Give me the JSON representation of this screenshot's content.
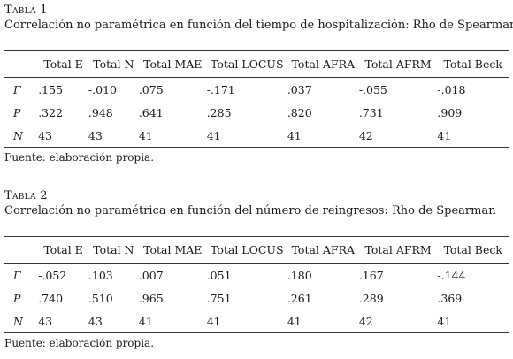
{
  "tables": [
    {
      "label": "Tabla 1",
      "caption": "Correlación no paramétrica en función del tiempo de hospitalización: Rho de Spearman",
      "columns": [
        "",
        "Total E",
        "Total N",
        "Total MAE",
        "Total LOCUS",
        "Total AFRA",
        "Total AFRM",
        "Total Beck"
      ],
      "rows": [
        {
          "label": "Γ",
          "values": [
            ".155",
            "-.010",
            ".075",
            "-.171",
            ".037",
            "-.055",
            "-.018"
          ]
        },
        {
          "label": "P",
          "values": [
            ".322",
            ".948",
            ".641",
            ".285",
            ".820",
            ".731",
            ".909"
          ]
        },
        {
          "label": "N",
          "values": [
            "43",
            "43",
            "41",
            "41",
            "41",
            "42",
            "41"
          ]
        }
      ],
      "note": "Fuente: elaboración propia."
    },
    {
      "label": "Tabla 2",
      "caption": "Correlación no paramétrica en función del número de reingresos: Rho de Spearman",
      "columns": [
        "",
        "Total E",
        "Total N",
        "Total MAE",
        "Total LOCUS",
        "Total AFRA",
        "Total AFRM",
        "Total Beck"
      ],
      "rows": [
        {
          "label": "Γ",
          "values": [
            "-.052",
            ".103",
            ".007",
            ".051",
            ".180",
            ".167",
            "-.144"
          ]
        },
        {
          "label": "P",
          "values": [
            ".740",
            ".510",
            ".965",
            ".751",
            ".261",
            ".289",
            ".369"
          ]
        },
        {
          "label": "N",
          "values": [
            "43",
            "43",
            "41",
            "41",
            "41",
            "42",
            "41"
          ]
        }
      ],
      "note": "Fuente: elaboración propia."
    }
  ]
}
